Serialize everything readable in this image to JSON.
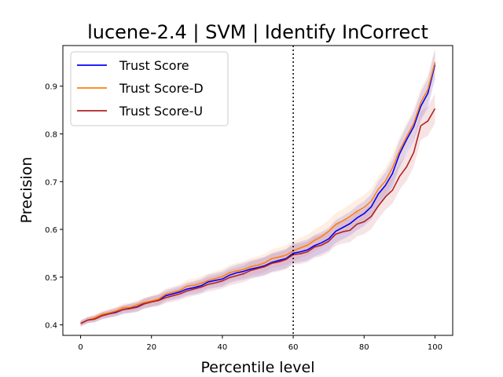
{
  "chart_data": {
    "type": "line",
    "title": "lucene-2.4 | SVM | Identify InCorrect",
    "xlabel": "Percentile level",
    "ylabel": "Precision",
    "xlim": [
      -5,
      105
    ],
    "ylim": [
      0.378,
      0.985
    ],
    "xticks": [
      0,
      20,
      40,
      60,
      80,
      100
    ],
    "yticks": [
      0.4,
      0.5,
      0.6,
      0.7,
      0.8,
      0.9
    ],
    "vline": {
      "x": 60,
      "style": "dotted",
      "color": "#000000"
    },
    "grid": false,
    "legend_position": "top-left",
    "x": [
      0,
      2,
      4,
      6,
      8,
      10,
      12,
      14,
      16,
      18,
      20,
      22,
      24,
      26,
      28,
      30,
      32,
      34,
      36,
      38,
      40,
      42,
      44,
      46,
      48,
      50,
      52,
      54,
      56,
      58,
      60,
      62,
      64,
      66,
      68,
      70,
      72,
      74,
      76,
      78,
      80,
      82,
      84,
      86,
      88,
      90,
      92,
      94,
      96,
      98,
      100
    ],
    "series": [
      {
        "name": "Trust Score",
        "color": "#0000ff",
        "band_color": "#0000ff",
        "values": [
          0.403,
          0.41,
          0.413,
          0.419,
          0.423,
          0.426,
          0.432,
          0.435,
          0.438,
          0.445,
          0.449,
          0.452,
          0.461,
          0.465,
          0.469,
          0.475,
          0.478,
          0.482,
          0.49,
          0.493,
          0.496,
          0.504,
          0.509,
          0.512,
          0.517,
          0.52,
          0.524,
          0.531,
          0.535,
          0.539,
          0.55,
          0.553,
          0.557,
          0.566,
          0.572,
          0.58,
          0.596,
          0.604,
          0.612,
          0.624,
          0.633,
          0.647,
          0.674,
          0.692,
          0.717,
          0.758,
          0.788,
          0.815,
          0.858,
          0.885,
          0.945
        ],
        "band": 0.006
      },
      {
        "name": "Trust Score-D",
        "color": "#ff7f0e",
        "band_color": "#ff7f0e",
        "values": [
          0.403,
          0.41,
          0.415,
          0.422,
          0.425,
          0.429,
          0.436,
          0.437,
          0.442,
          0.447,
          0.45,
          0.454,
          0.464,
          0.468,
          0.472,
          0.481,
          0.483,
          0.487,
          0.493,
          0.497,
          0.501,
          0.509,
          0.513,
          0.516,
          0.522,
          0.525,
          0.53,
          0.539,
          0.542,
          0.546,
          0.555,
          0.561,
          0.567,
          0.577,
          0.585,
          0.596,
          0.61,
          0.618,
          0.627,
          0.638,
          0.646,
          0.659,
          0.684,
          0.701,
          0.729,
          0.765,
          0.794,
          0.822,
          0.866,
          0.893,
          0.95
        ],
        "band": 0.006
      },
      {
        "name": "Trust Score-U",
        "color": "#b22222",
        "band_color": "#b22222",
        "values": [
          0.403,
          0.41,
          0.412,
          0.419,
          0.423,
          0.427,
          0.432,
          0.434,
          0.437,
          0.444,
          0.448,
          0.451,
          0.457,
          0.461,
          0.465,
          0.471,
          0.475,
          0.479,
          0.485,
          0.488,
          0.492,
          0.499,
          0.503,
          0.507,
          0.514,
          0.518,
          0.522,
          0.529,
          0.532,
          0.537,
          0.547,
          0.549,
          0.553,
          0.563,
          0.567,
          0.575,
          0.59,
          0.595,
          0.598,
          0.611,
          0.616,
          0.627,
          0.649,
          0.668,
          0.682,
          0.711,
          0.731,
          0.761,
          0.817,
          0.827,
          0.853
        ],
        "band": 0.006
      }
    ]
  }
}
